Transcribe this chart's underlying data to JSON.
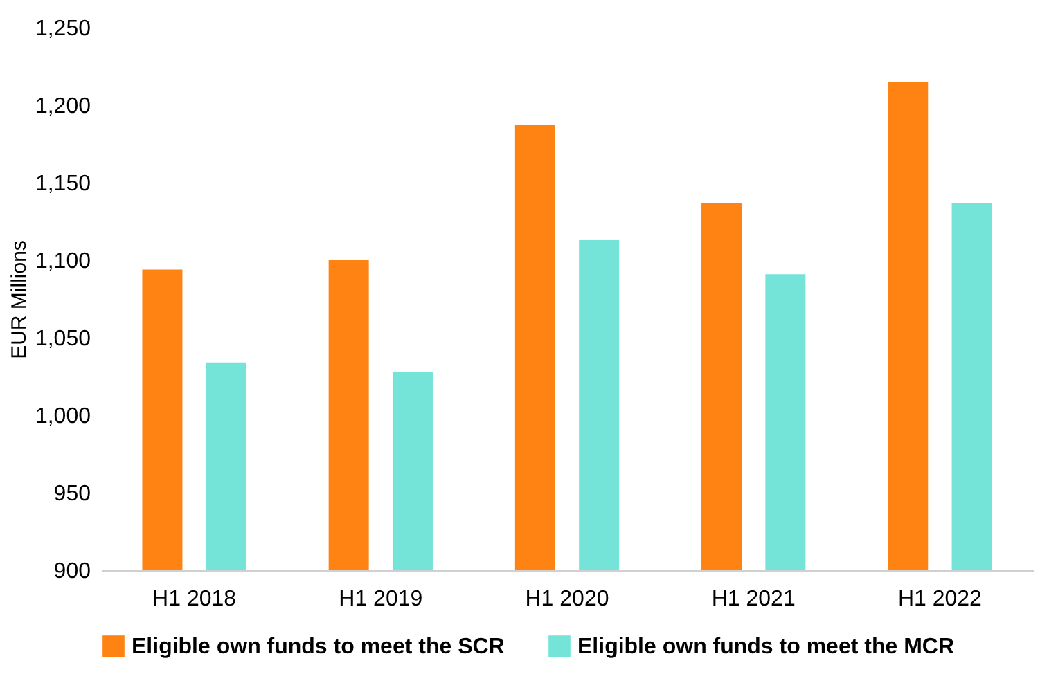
{
  "chart_data": {
    "type": "bar",
    "ylabel": "EUR Millions",
    "categories": [
      "H1 2018",
      "H1 2019",
      "H1 2020",
      "H1 2021",
      "H1 2022"
    ],
    "series": [
      {
        "name": "Eligible own funds to meet the SCR",
        "color": "#ff8313",
        "values": [
          1094,
          1100,
          1187,
          1137,
          1215
        ]
      },
      {
        "name": "Eligible own funds to meet the MCR",
        "color": "#74e4d8",
        "values": [
          1034,
          1028,
          1113,
          1091,
          1137
        ]
      }
    ],
    "ylim": [
      900,
      1250
    ],
    "yticks": [
      900,
      950,
      {
        "value": 1000,
        "label": "1,000"
      },
      {
        "value": 1050,
        "label": "1,050"
      },
      {
        "value": 1100,
        "label": "1,100"
      },
      {
        "value": 1150,
        "label": "1,150"
      },
      {
        "value": 1200,
        "label": "1,200"
      },
      {
        "value": 1250,
        "label": "1,250"
      }
    ],
    "grid": false,
    "legend": "bottom"
  }
}
